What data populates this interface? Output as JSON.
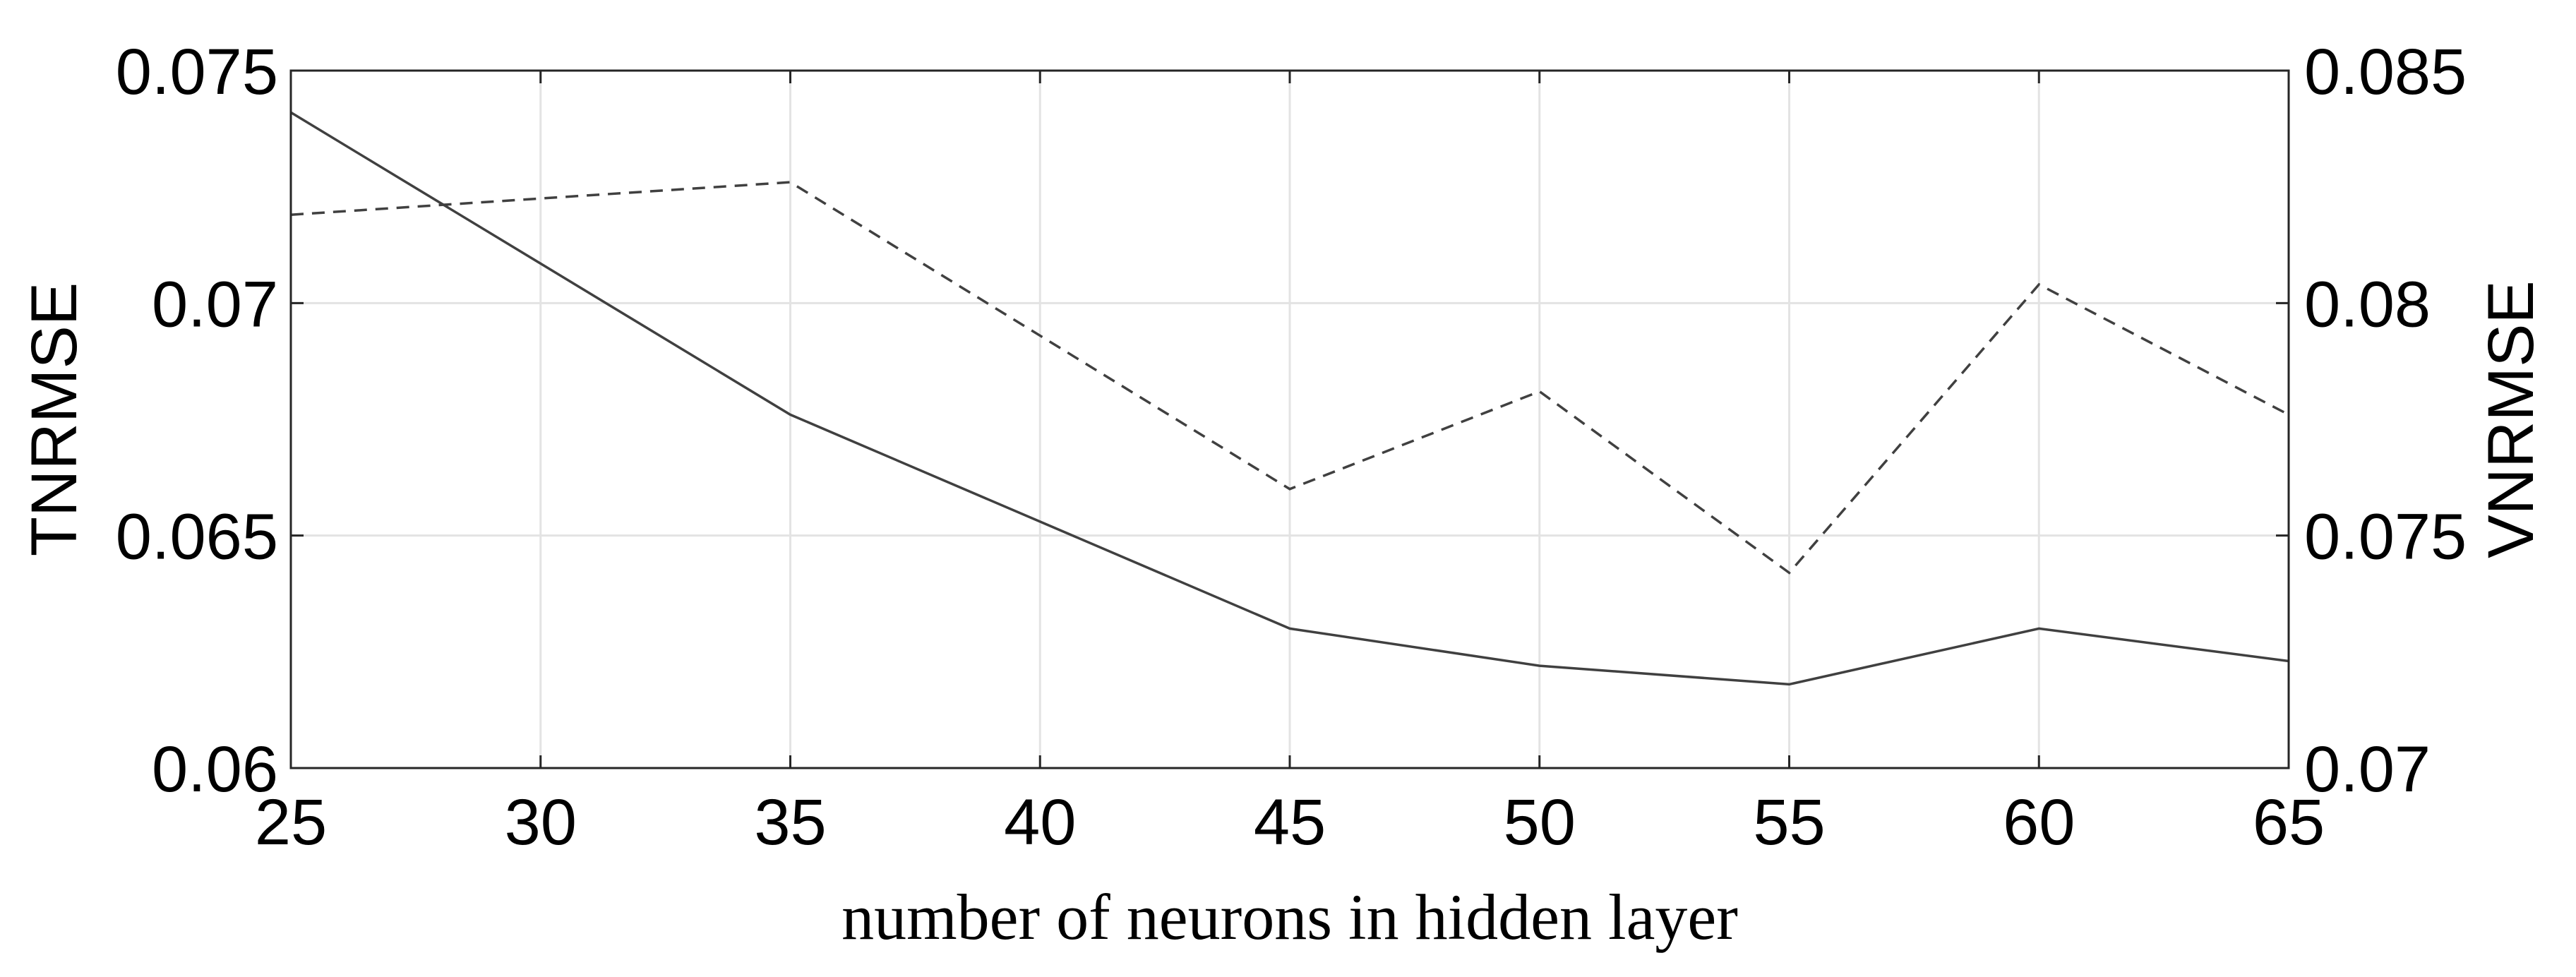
{
  "chart_data": {
    "type": "line",
    "x": [
      25,
      35,
      45,
      50,
      55,
      60,
      65
    ],
    "series": [
      {
        "axis": "left",
        "style": "solid",
        "color": "#404040",
        "values": [
          0.0741,
          0.0676,
          0.063,
          0.0622,
          0.0618,
          0.063,
          0.0623
        ]
      },
      {
        "axis": "right",
        "style": "dashed",
        "color": "#404040",
        "values": [
          0.0819,
          0.0826,
          0.076,
          0.0781,
          0.0742,
          0.0804,
          0.0776
        ]
      }
    ],
    "xlabel": "number of neurons in hidden layer",
    "ylabel_left": "TNRMSE",
    "ylabel_right": "VNRMSE",
    "xlim": [
      25,
      65
    ],
    "ylim_left": [
      0.06,
      0.075
    ],
    "ylim_right": [
      0.07,
      0.085
    ],
    "xticks": [
      "25",
      "30",
      "35",
      "40",
      "45",
      "50",
      "55",
      "60",
      "65"
    ],
    "yticks_left": [
      "0.06",
      "0.065",
      "0.07",
      "0.075"
    ],
    "yticks_right": [
      "0.07",
      "0.075",
      "0.08",
      "0.085"
    ],
    "grid": true
  }
}
